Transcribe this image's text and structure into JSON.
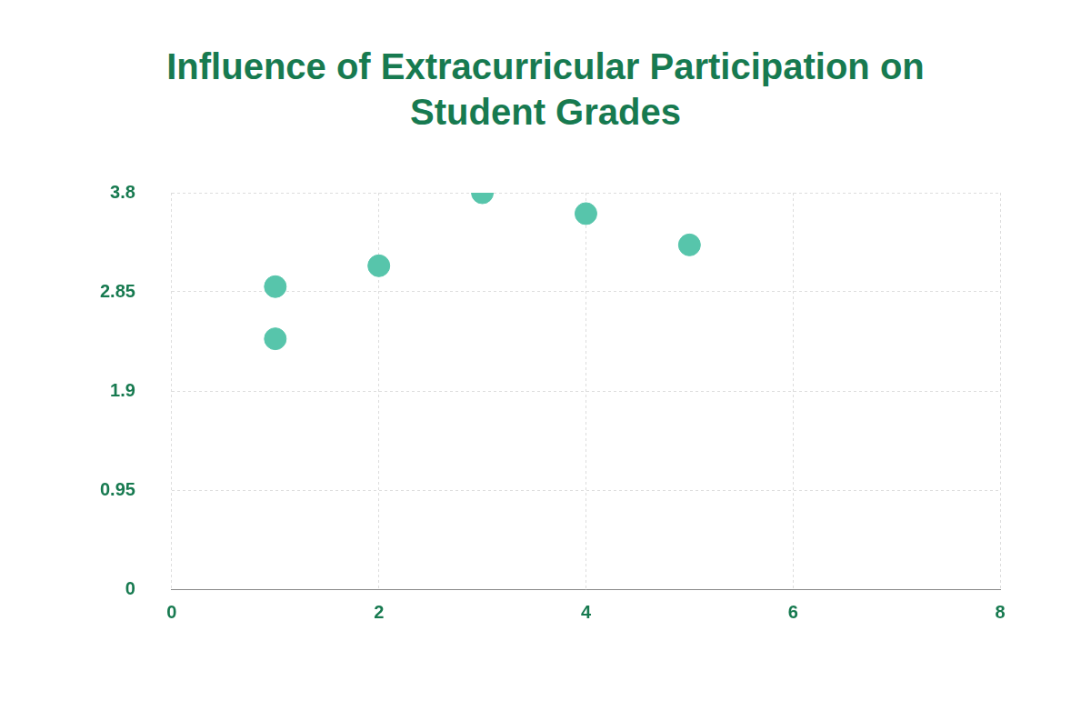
{
  "chart_data": {
    "type": "scatter",
    "title": "Influence of Extracurricular Participation on Student Grades",
    "x": [
      1,
      1,
      2,
      3,
      4,
      5
    ],
    "values": [
      2.9,
      2.4,
      3.1,
      3.8,
      3.6,
      3.3
    ],
    "color": "#57c5ab",
    "marker": "circle",
    "xlim": [
      0,
      8
    ],
    "xticks": [
      0,
      2,
      4,
      6,
      8
    ],
    "ylim": [
      0,
      3.8
    ],
    "yticks": [
      0,
      0.95,
      1.9,
      2.85,
      3.8
    ],
    "grid": true
  }
}
